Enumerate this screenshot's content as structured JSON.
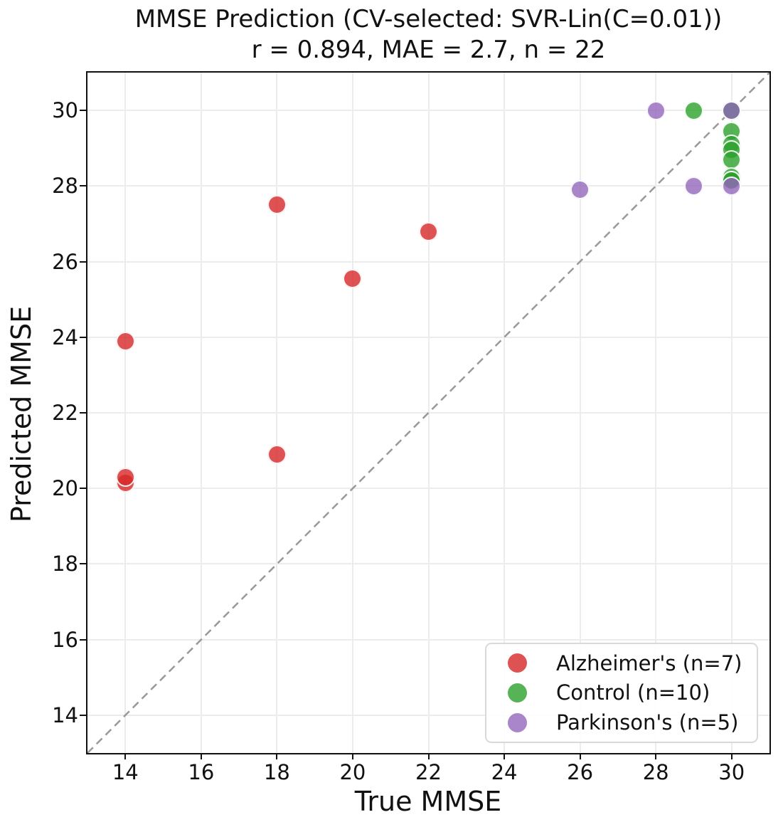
{
  "chart_data": {
    "type": "scatter",
    "title": "MMSE Prediction (CV-selected: SVR-Lin(C=0.01))",
    "subtitle": "r = 0.894, MAE = 2.7, n = 22",
    "xlabel": "True MMSE",
    "ylabel": "Predicted MMSE",
    "xlim": [
      13,
      31
    ],
    "ylim": [
      13,
      31
    ],
    "xticks": [
      14,
      16,
      18,
      20,
      22,
      24,
      26,
      28,
      30
    ],
    "yticks": [
      14,
      16,
      18,
      20,
      22,
      24,
      26,
      28,
      30
    ],
    "grid": true,
    "grid_color": "#ececec",
    "marker_alpha": 0.8,
    "marker_edge_color": "#ffffff",
    "identity_line": {
      "from": [
        13,
        13
      ],
      "to": [
        31,
        31
      ],
      "style": "dashed",
      "color": "#999999"
    },
    "legend_position": "lower right",
    "series": [
      {
        "name": "Alzheimer's (n=7)",
        "color": "#d62728",
        "points": [
          [
            14,
            23.9
          ],
          [
            14,
            20.15
          ],
          [
            14,
            20.3
          ],
          [
            18,
            27.5
          ],
          [
            18,
            20.9
          ],
          [
            20,
            25.55
          ],
          [
            22,
            26.8
          ]
        ]
      },
      {
        "name": "Control (n=10)",
        "color": "#2ca02c",
        "points": [
          [
            29,
            30
          ],
          [
            30,
            30
          ],
          [
            30,
            30
          ],
          [
            30,
            29.45
          ],
          [
            30,
            29.1
          ],
          [
            30,
            28.95
          ],
          [
            30,
            28.7
          ],
          [
            30,
            28.25
          ],
          [
            30,
            28.15
          ],
          [
            30,
            28.15
          ]
        ]
      },
      {
        "name": "Parkinson's (n=5)",
        "color": "#9467bd",
        "points": [
          [
            26,
            27.9
          ],
          [
            28,
            30
          ],
          [
            29,
            28
          ],
          [
            30,
            28
          ],
          [
            30,
            30
          ]
        ]
      }
    ]
  }
}
